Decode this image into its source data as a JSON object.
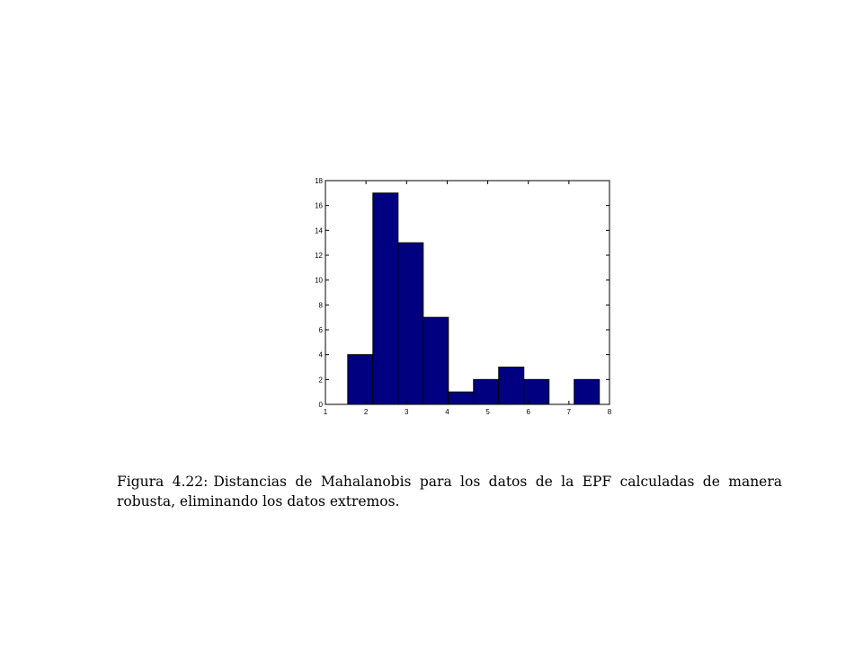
{
  "chart_data": {
    "type": "bar",
    "title": "",
    "xlabel": "",
    "ylabel": "",
    "xlim": [
      1,
      8
    ],
    "ylim": [
      0,
      18
    ],
    "xticks": [
      1,
      2,
      3,
      4,
      5,
      6,
      7,
      8
    ],
    "yticks": [
      0,
      2,
      4,
      6,
      8,
      10,
      12,
      14,
      16,
      18
    ],
    "bins": [
      {
        "x0": 1.55,
        "x1": 2.17,
        "value": 4
      },
      {
        "x0": 2.17,
        "x1": 2.79,
        "value": 17
      },
      {
        "x0": 2.79,
        "x1": 3.41,
        "value": 13
      },
      {
        "x0": 3.41,
        "x1": 4.03,
        "value": 7
      },
      {
        "x0": 4.03,
        "x1": 4.65,
        "value": 1
      },
      {
        "x0": 4.65,
        "x1": 5.27,
        "value": 2
      },
      {
        "x0": 5.27,
        "x1": 5.89,
        "value": 3
      },
      {
        "x0": 5.89,
        "x1": 6.51,
        "value": 2
      },
      {
        "x0": 6.51,
        "x1": 7.13,
        "value": 0
      },
      {
        "x0": 7.13,
        "x1": 7.75,
        "value": 2
      }
    ],
    "bar_color": "#000080",
    "edge_color": "#000000",
    "grid": false
  },
  "caption": {
    "label": "Figura 4.22:",
    "text": "Distancias de Mahalanobis para los datos de la EPF calculadas de manera robusta, eliminando los datos extremos."
  }
}
